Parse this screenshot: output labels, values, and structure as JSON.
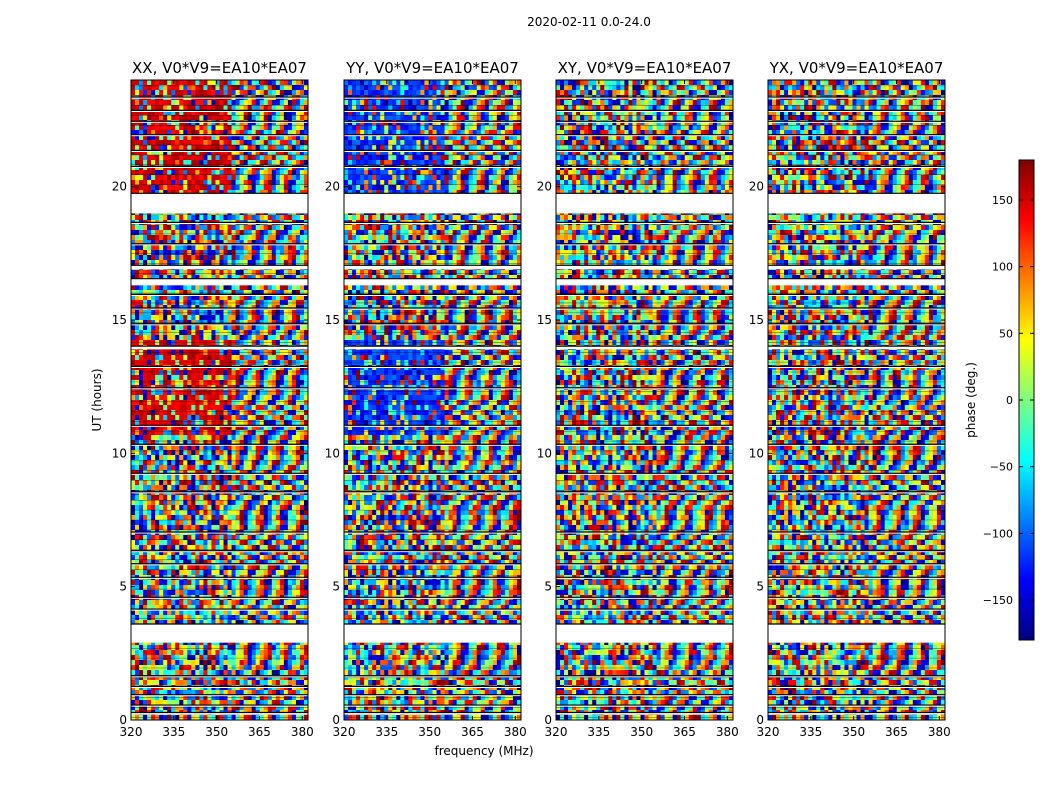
{
  "chart_data": {
    "type": "heatmap",
    "suptitle": "2020-02-11 0.0-24.0",
    "xlabel": "frequency (MHz)",
    "ylabel": "UT (hours)",
    "xlim": [
      320,
      382
    ],
    "ylim": [
      0,
      24
    ],
    "xticks": [
      320,
      335,
      350,
      365,
      380
    ],
    "yticks": [
      0,
      5,
      10,
      15,
      20
    ],
    "panels": [
      {
        "title": "XX, V0*V9=EA10*EA07",
        "bias": "red"
      },
      {
        "title": "YY, V0*V9=EA10*EA07",
        "bias": "blue"
      },
      {
        "title": "XY, V0*V9=EA10*EA07",
        "bias": "none"
      },
      {
        "title": "YX, V0*V9=EA10*EA07",
        "bias": "none"
      }
    ],
    "gaps_ut": [
      [
        0.2,
        0.28
      ],
      [
        0.5,
        0.56
      ],
      [
        0.9,
        0.95
      ],
      [
        1.2,
        1.26
      ],
      [
        1.6,
        1.66
      ],
      [
        2.9,
        3.6
      ],
      [
        4.1,
        4.16
      ],
      [
        4.55,
        4.6
      ],
      [
        5.3,
        5.35
      ],
      [
        5.8,
        5.86
      ],
      [
        6.3,
        6.35
      ],
      [
        7.0,
        7.05
      ],
      [
        8.5,
        8.56
      ],
      [
        9.2,
        9.25
      ],
      [
        10.3,
        10.34
      ],
      [
        11.0,
        11.05
      ],
      [
        12.4,
        12.46
      ],
      [
        13.2,
        13.26
      ],
      [
        13.9,
        14.02
      ],
      [
        14.8,
        14.86
      ],
      [
        15.4,
        15.45
      ],
      [
        15.9,
        15.96
      ],
      [
        16.3,
        16.55
      ],
      [
        16.9,
        17.05
      ],
      [
        17.8,
        17.86
      ],
      [
        18.6,
        18.66
      ],
      [
        19.0,
        19.75
      ],
      [
        20.7,
        20.76
      ],
      [
        21.3,
        21.36
      ],
      [
        21.9,
        21.95
      ],
      [
        22.4,
        22.45
      ],
      [
        22.8,
        22.86
      ],
      [
        23.3,
        23.36
      ]
    ],
    "colorbar": {
      "label": "phase (deg.)",
      "range": [
        -180,
        180
      ],
      "ticks": [
        -150,
        -100,
        -50,
        0,
        50,
        100,
        150
      ],
      "tick_labels": [
        "−150",
        "−100",
        "−50",
        "0",
        "50",
        "100",
        "150"
      ],
      "colormap": [
        "#00007f",
        "#0000ff",
        "#0080ff",
        "#00ffff",
        "#7fff7f",
        "#ffff00",
        "#ff8000",
        "#ff0000",
        "#7f0000"
      ]
    }
  }
}
